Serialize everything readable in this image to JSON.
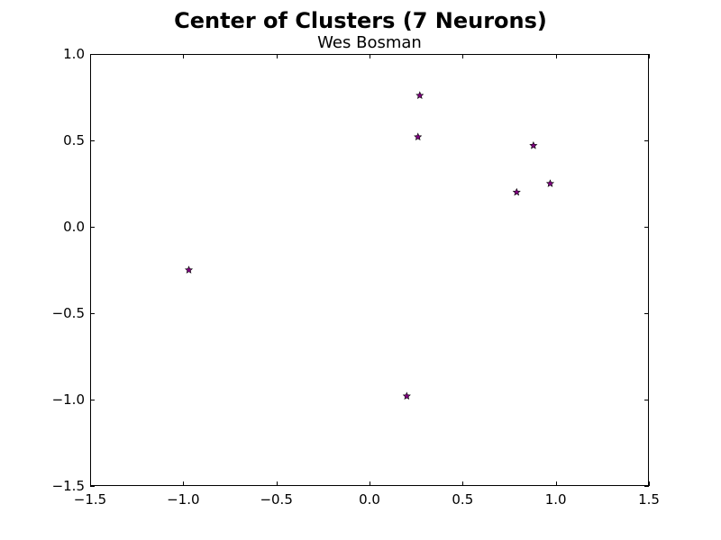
{
  "chart_data": {
    "type": "scatter",
    "title": "Center of Clusters (7 Neurons)",
    "subtitle": "Wes Bosman",
    "xlabel": "",
    "ylabel": "",
    "xlim": [
      -1.5,
      1.5
    ],
    "ylim": [
      -1.5,
      1.0
    ],
    "xticks": [
      -1.5,
      -1.0,
      -0.5,
      0.0,
      0.5,
      1.0,
      1.5
    ],
    "xtick_labels": [
      "−1.5",
      "−1.0",
      "−0.5",
      "0.0",
      "0.5",
      "1.0",
      "1.5"
    ],
    "yticks": [
      -1.5,
      -1.0,
      -0.5,
      0.0,
      0.5,
      1.0
    ],
    "ytick_labels": [
      "−1.5",
      "−1.0",
      "−0.5",
      "0.0",
      "0.5",
      "1.0"
    ],
    "grid": false,
    "marker": "star",
    "marker_color": "#800080",
    "points": [
      {
        "x": 0.27,
        "y": 0.76
      },
      {
        "x": 0.26,
        "y": 0.52
      },
      {
        "x": 0.88,
        "y": 0.47
      },
      {
        "x": 0.97,
        "y": 0.25
      },
      {
        "x": 0.79,
        "y": 0.2
      },
      {
        "x": -0.97,
        "y": -0.25
      },
      {
        "x": 0.2,
        "y": -0.98
      }
    ]
  }
}
